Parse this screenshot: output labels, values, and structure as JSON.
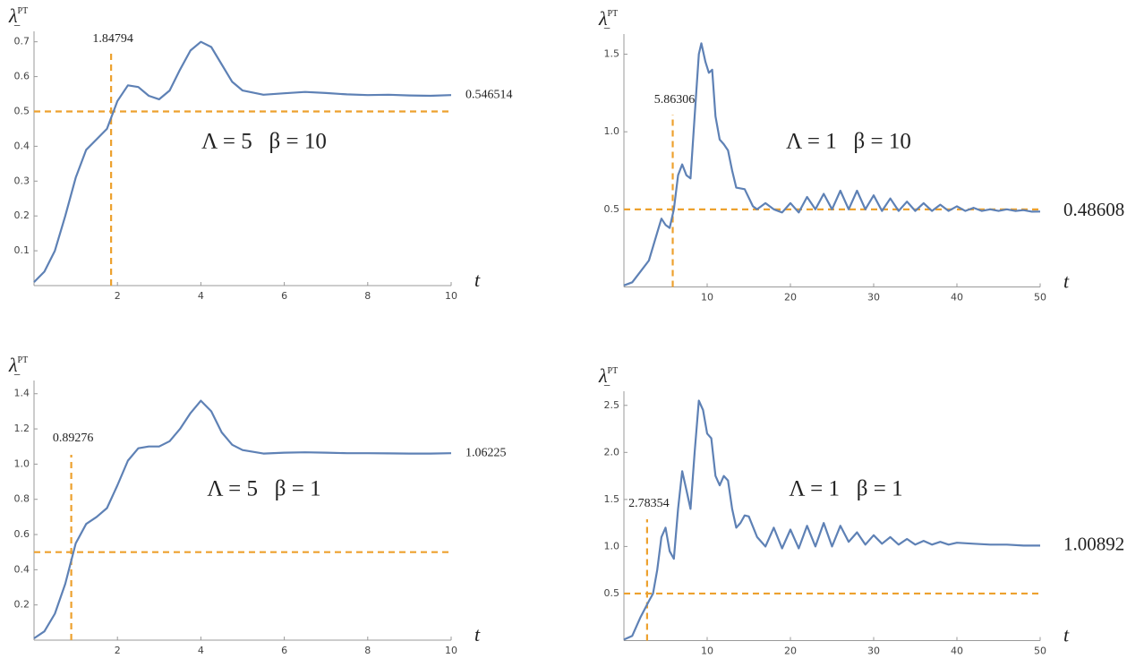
{
  "chart_data": [
    {
      "type": "line",
      "xlabel": "t",
      "ylabel": "λ",
      "ylabel_sub": "−",
      "ylabel_sup": "PT",
      "annotation": "Λ = 5   β = 10",
      "hline": 0.5,
      "vline": 1.84794,
      "end_value": 0.546514,
      "guide_color": "#eda12e",
      "xlim": [
        0,
        10
      ],
      "ylim": [
        0,
        0.73
      ],
      "xticks": [
        2,
        4,
        6,
        8,
        10
      ],
      "yticks": [
        0.1,
        0.2,
        0.3,
        0.4,
        0.5,
        0.6,
        0.7
      ],
      "x": [
        0,
        0.25,
        0.5,
        0.75,
        1,
        1.25,
        1.5,
        1.75,
        2,
        2.25,
        2.5,
        2.75,
        3,
        3.25,
        3.5,
        3.75,
        4,
        4.25,
        4.5,
        4.75,
        5,
        5.5,
        6,
        6.5,
        7,
        7.5,
        8,
        8.5,
        9,
        9.5,
        10
      ],
      "series": [
        {
          "color": "#5e81b5",
          "values": [
            0.01,
            0.04,
            0.1,
            0.2,
            0.31,
            0.39,
            0.42,
            0.45,
            0.53,
            0.575,
            0.57,
            0.545,
            0.535,
            0.56,
            0.62,
            0.675,
            0.7,
            0.685,
            0.635,
            0.585,
            0.56,
            0.548,
            0.552,
            0.556,
            0.553,
            0.549,
            0.547,
            0.548,
            0.546,
            0.545,
            0.547
          ]
        }
      ]
    },
    {
      "type": "line",
      "xlabel": "t",
      "ylabel": "λ",
      "ylabel_sub": "−",
      "ylabel_sup": "PT",
      "annotation": "Λ = 1   β = 10",
      "hline": 0.5,
      "vline": 5.86306,
      "end_value": 0.48608,
      "guide_color": "#eda12e",
      "xlim": [
        0,
        50
      ],
      "ylim": [
        0,
        1.63
      ],
      "xticks": [
        10,
        20,
        30,
        40,
        50
      ],
      "yticks": [
        0.5,
        {
          "value": 1,
          "label": "1.0"
        },
        1.5
      ],
      "x": [
        0,
        1,
        2,
        3,
        4,
        4.5,
        5,
        5.5,
        6,
        6.5,
        7,
        7.5,
        8,
        8.5,
        9,
        9.3,
        9.8,
        10.2,
        10.6,
        11,
        11.5,
        12,
        12.5,
        13,
        13.5,
        14.5,
        15.5,
        16,
        17,
        18,
        19,
        20,
        21,
        22,
        23,
        24,
        25,
        26,
        27,
        28,
        29,
        30,
        31,
        32,
        33,
        34,
        35,
        36,
        37,
        38,
        39,
        40,
        41,
        42,
        43,
        44,
        45,
        46,
        47,
        48,
        49,
        50
      ],
      "series": [
        {
          "color": "#5e81b5",
          "values": [
            0.01,
            0.03,
            0.1,
            0.17,
            0.35,
            0.44,
            0.4,
            0.38,
            0.5,
            0.72,
            0.79,
            0.72,
            0.7,
            1.1,
            1.5,
            1.57,
            1.45,
            1.38,
            1.4,
            1.1,
            0.95,
            0.92,
            0.88,
            0.75,
            0.64,
            0.63,
            0.52,
            0.5,
            0.54,
            0.5,
            0.48,
            0.54,
            0.48,
            0.58,
            0.5,
            0.6,
            0.5,
            0.62,
            0.5,
            0.62,
            0.5,
            0.59,
            0.49,
            0.57,
            0.49,
            0.55,
            0.49,
            0.54,
            0.49,
            0.53,
            0.49,
            0.52,
            0.49,
            0.51,
            0.49,
            0.5,
            0.49,
            0.5,
            0.49,
            0.495,
            0.485,
            0.486
          ]
        }
      ]
    },
    {
      "type": "line",
      "xlabel": "t",
      "ylabel": "λ",
      "ylabel_sub": "−",
      "ylabel_sup": "PT",
      "annotation": "Λ = 5   β = 1",
      "hline": 0.5,
      "vline": 0.89276,
      "end_value": 1.06225,
      "guide_color": "#eda12e",
      "xlim": [
        0,
        10
      ],
      "ylim": [
        0,
        1.475
      ],
      "xticks": [
        2,
        4,
        6,
        8,
        10
      ],
      "yticks": [
        0.2,
        0.4,
        0.6,
        0.8,
        {
          "value": 1,
          "label": "1.0"
        },
        1.2,
        1.4
      ],
      "x": [
        0,
        0.25,
        0.5,
        0.75,
        1,
        1.25,
        1.5,
        1.75,
        2,
        2.25,
        2.5,
        2.75,
        3,
        3.25,
        3.5,
        3.75,
        4,
        4.25,
        4.5,
        4.75,
        5,
        5.5,
        6,
        6.5,
        7,
        7.5,
        8,
        8.5,
        9,
        9.5,
        10
      ],
      "series": [
        {
          "color": "#5e81b5",
          "values": [
            0.01,
            0.05,
            0.15,
            0.32,
            0.55,
            0.66,
            0.7,
            0.75,
            0.88,
            1.02,
            1.09,
            1.1,
            1.1,
            1.13,
            1.2,
            1.29,
            1.36,
            1.3,
            1.18,
            1.11,
            1.08,
            1.06,
            1.065,
            1.067,
            1.065,
            1.062,
            1.062,
            1.061,
            1.06,
            1.06,
            1.062
          ]
        }
      ]
    },
    {
      "type": "line",
      "xlabel": "t",
      "ylabel": "λ",
      "ylabel_sub": "−",
      "ylabel_sup": "PT",
      "annotation": "Λ = 1   β = 1",
      "hline": 0.5,
      "vline": 2.78354,
      "end_value": 1.00892,
      "guide_color": "#eda12e",
      "xlim": [
        0,
        50
      ],
      "ylim": [
        0,
        2.65
      ],
      "xticks": [
        10,
        20,
        30,
        40,
        50
      ],
      "yticks": [
        0.5,
        {
          "value": 1,
          "label": "1.0"
        },
        1.5,
        {
          "value": 2,
          "label": "2.0"
        },
        2.5
      ],
      "x": [
        0,
        1,
        2,
        3,
        3.5,
        4,
        4.5,
        5,
        5.5,
        6,
        6.5,
        7,
        7.5,
        8,
        8.5,
        9,
        9.5,
        10,
        10.5,
        11,
        11.5,
        12,
        12.5,
        13,
        13.5,
        14,
        14.5,
        15,
        16,
        17,
        18,
        19,
        20,
        21,
        22,
        23,
        24,
        25,
        26,
        27,
        28,
        29,
        30,
        31,
        32,
        33,
        34,
        35,
        36,
        37,
        38,
        39,
        40,
        42,
        44,
        46,
        48,
        50
      ],
      "series": [
        {
          "color": "#5e81b5",
          "values": [
            0.01,
            0.05,
            0.25,
            0.42,
            0.5,
            0.75,
            1.1,
            1.2,
            0.95,
            0.87,
            1.4,
            1.8,
            1.6,
            1.4,
            2.0,
            2.55,
            2.45,
            2.2,
            2.15,
            1.75,
            1.65,
            1.75,
            1.7,
            1.4,
            1.2,
            1.25,
            1.33,
            1.32,
            1.1,
            1.0,
            1.2,
            0.98,
            1.18,
            0.98,
            1.22,
            1.0,
            1.25,
            1.0,
            1.22,
            1.05,
            1.15,
            1.02,
            1.12,
            1.03,
            1.1,
            1.02,
            1.08,
            1.02,
            1.06,
            1.02,
            1.05,
            1.02,
            1.04,
            1.03,
            1.02,
            1.02,
            1.01,
            1.01
          ]
        }
      ]
    }
  ]
}
